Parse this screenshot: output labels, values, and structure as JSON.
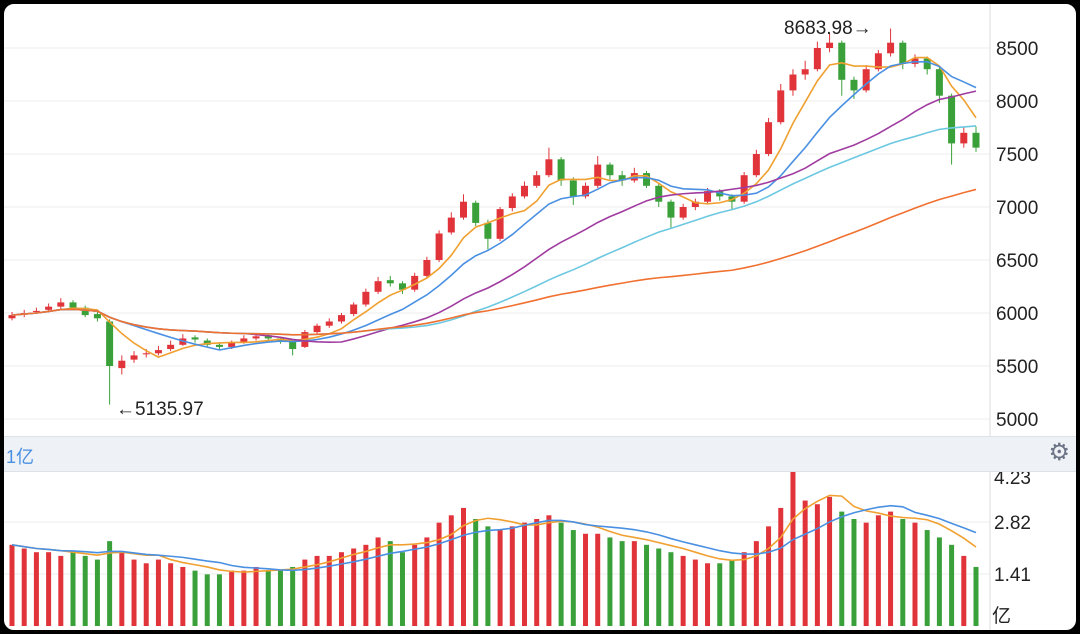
{
  "chart_data": {
    "type": "candlestick",
    "price_axis": {
      "ticks": [
        5000,
        5500,
        6000,
        6500,
        7000,
        7500,
        8000,
        8500
      ],
      "range": [
        4877,
        8906
      ]
    },
    "volume_axis": {
      "ticks": [
        "4.23",
        "2.82",
        "1.41"
      ],
      "unit": "亿",
      "range": [
        0,
        4.23
      ]
    },
    "annotations": {
      "high_label": "8683.98→",
      "low_label": "←5135.97"
    },
    "volume_unit_label": "1亿",
    "ma_periods": [
      5,
      10,
      20,
      30,
      60
    ],
    "volume_ma_periods": [
      5,
      10
    ],
    "colors": {
      "up": "#e0343a",
      "down": "#3aa03a",
      "ma5": "#f0a030",
      "ma10": "#4a90e2",
      "ma20": "#a03ca0",
      "ma30": "#6cc8e0",
      "ma60": "#f07030",
      "vol_ma5": "#f0a030",
      "vol_ma10": "#4a90e2"
    },
    "ohlc": [
      [
        5950,
        6010,
        5930,
        5980
      ],
      [
        5990,
        6030,
        5960,
        6000
      ],
      [
        6010,
        6050,
        5990,
        6020
      ],
      [
        6030,
        6090,
        6010,
        6060
      ],
      [
        6060,
        6140,
        6040,
        6100
      ],
      [
        6100,
        6120,
        6030,
        6050
      ],
      [
        6050,
        6070,
        5960,
        5980
      ],
      [
        5990,
        6010,
        5920,
        5950
      ],
      [
        5920,
        5940,
        5136,
        5500
      ],
      [
        5480,
        5600,
        5420,
        5550
      ],
      [
        5560,
        5640,
        5530,
        5600
      ],
      [
        5610,
        5660,
        5580,
        5620
      ],
      [
        5620,
        5690,
        5600,
        5650
      ],
      [
        5660,
        5740,
        5640,
        5700
      ],
      [
        5700,
        5800,
        5690,
        5760
      ],
      [
        5770,
        5790,
        5720,
        5750
      ],
      [
        5740,
        5760,
        5680,
        5700
      ],
      [
        5700,
        5720,
        5650,
        5680
      ],
      [
        5680,
        5740,
        5660,
        5720
      ],
      [
        5720,
        5790,
        5710,
        5760
      ],
      [
        5760,
        5810,
        5740,
        5780
      ],
      [
        5790,
        5800,
        5740,
        5760
      ],
      [
        5760,
        5770,
        5710,
        5740
      ],
      [
        5740,
        5750,
        5600,
        5660
      ],
      [
        5680,
        5840,
        5670,
        5820
      ],
      [
        5820,
        5900,
        5800,
        5880
      ],
      [
        5880,
        5950,
        5860,
        5920
      ],
      [
        5920,
        6000,
        5900,
        5980
      ],
      [
        5990,
        6100,
        5970,
        6080
      ],
      [
        6080,
        6230,
        6060,
        6200
      ],
      [
        6200,
        6340,
        6180,
        6300
      ],
      [
        6310,
        6350,
        6250,
        6280
      ],
      [
        6280,
        6300,
        6180,
        6220
      ],
      [
        6220,
        6380,
        6200,
        6350
      ],
      [
        6350,
        6530,
        6330,
        6500
      ],
      [
        6500,
        6780,
        6480,
        6750
      ],
      [
        6760,
        6950,
        6740,
        6900
      ],
      [
        6900,
        7120,
        6880,
        7050
      ],
      [
        7040,
        7060,
        6820,
        6850
      ],
      [
        6850,
        6880,
        6600,
        6700
      ],
      [
        6700,
        7000,
        6680,
        6980
      ],
      [
        6990,
        7130,
        6960,
        7100
      ],
      [
        7100,
        7240,
        7080,
        7200
      ],
      [
        7200,
        7340,
        7180,
        7300
      ],
      [
        7300,
        7560,
        7280,
        7450
      ],
      [
        7450,
        7470,
        7200,
        7250
      ],
      [
        7250,
        7280,
        7020,
        7100
      ],
      [
        7100,
        7230,
        7080,
        7200
      ],
      [
        7200,
        7480,
        7180,
        7400
      ],
      [
        7400,
        7420,
        7260,
        7300
      ],
      [
        7300,
        7340,
        7200,
        7250
      ],
      [
        7250,
        7370,
        7230,
        7320
      ],
      [
        7320,
        7340,
        7180,
        7200
      ],
      [
        7200,
        7220,
        7000,
        7050
      ],
      [
        7050,
        7070,
        6800,
        6900
      ],
      [
        6900,
        7030,
        6880,
        7000
      ],
      [
        7000,
        7080,
        6970,
        7050
      ],
      [
        7050,
        7180,
        7030,
        7150
      ],
      [
        7150,
        7170,
        7060,
        7100
      ],
      [
        7100,
        7120,
        6980,
        7050
      ],
      [
        7050,
        7330,
        7030,
        7300
      ],
      [
        7300,
        7540,
        7280,
        7500
      ],
      [
        7500,
        7840,
        7480,
        7800
      ],
      [
        7800,
        8160,
        7780,
        8100
      ],
      [
        8100,
        8300,
        8050,
        8250
      ],
      [
        8250,
        8380,
        8200,
        8300
      ],
      [
        8300,
        8560,
        8280,
        8500
      ],
      [
        8500,
        8640,
        8460,
        8550
      ],
      [
        8550,
        8570,
        8050,
        8200
      ],
      [
        8200,
        8230,
        8020,
        8100
      ],
      [
        8100,
        8340,
        8080,
        8300
      ],
      [
        8300,
        8480,
        8280,
        8450
      ],
      [
        8450,
        8684,
        8420,
        8550
      ],
      [
        8550,
        8570,
        8300,
        8350
      ],
      [
        8350,
        8440,
        8320,
        8400
      ],
      [
        8400,
        8420,
        8250,
        8300
      ],
      [
        8300,
        8320,
        7980,
        8050
      ],
      [
        8050,
        8070,
        7400,
        7600
      ],
      [
        7600,
        7760,
        7560,
        7700
      ],
      [
        7700,
        7760,
        7520,
        7560
      ]
    ],
    "volume": [
      2.2,
      2.1,
      2.0,
      2.0,
      1.9,
      2.0,
      1.9,
      1.8,
      2.3,
      2.0,
      1.8,
      1.7,
      1.8,
      1.7,
      1.6,
      1.5,
      1.4,
      1.4,
      1.5,
      1.5,
      1.6,
      1.5,
      1.5,
      1.6,
      1.8,
      1.9,
      1.9,
      2.0,
      2.1,
      2.2,
      2.4,
      2.3,
      2.0,
      2.2,
      2.4,
      2.8,
      3.0,
      3.2,
      2.9,
      2.7,
      2.6,
      2.7,
      2.8,
      2.9,
      3.0,
      2.8,
      2.6,
      2.5,
      2.5,
      2.4,
      2.3,
      2.3,
      2.2,
      2.1,
      2.0,
      1.9,
      1.8,
      1.7,
      1.7,
      1.8,
      2.0,
      2.3,
      2.7,
      3.2,
      4.3,
      3.4,
      3.3,
      3.5,
      3.1,
      2.9,
      2.8,
      3.0,
      3.1,
      2.9,
      2.8,
      2.6,
      2.4,
      2.2,
      1.9,
      1.6
    ]
  }
}
